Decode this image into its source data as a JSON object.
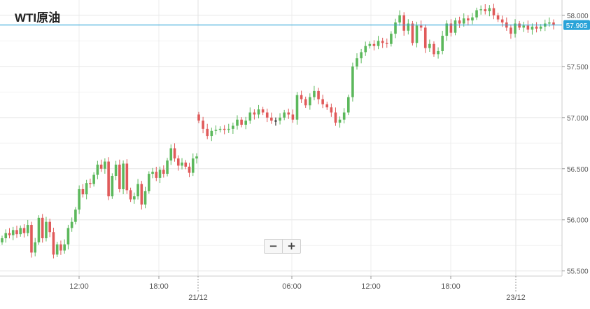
{
  "chart_data": {
    "type": "candlestick",
    "title": "WTI原油",
    "instrument": "WTI原油",
    "interval_minutes": 15,
    "y_ticks": [
      "55.500",
      "56.000",
      "56.500",
      "57.000",
      "57.500",
      "58.000"
    ],
    "ylim": [
      55.45,
      58.15
    ],
    "x_time_ticks": [
      "12:00",
      "18:00",
      "06:00",
      "12:00",
      "18:00"
    ],
    "x_date_ticks": [
      "21/12",
      "23/12"
    ],
    "current_price": "57.905",
    "grid": true,
    "colors": {
      "up": "#5cb85c",
      "down": "#e05a5a",
      "doji": "#111111",
      "price_line": "#2aa3d8",
      "price_label_bg": "#2aa3d8"
    },
    "segments": [
      {
        "start": "2019-12-20 09:00",
        "path": [
          55.82,
          55.87,
          55.85,
          55.9,
          55.86,
          55.92,
          55.87,
          55.95,
          55.68,
          55.78,
          56.02,
          55.82,
          55.98,
          55.88,
          55.66,
          55.76,
          55.7,
          55.76,
          55.92,
          55.98,
          56.1,
          56.3,
          56.25,
          56.36,
          56.35,
          56.44,
          56.54,
          56.5,
          56.57,
          56.23,
          56.43,
          56.54,
          56.3,
          56.55,
          56.29,
          56.2,
          56.23,
          56.35,
          56.15,
          56.28,
          56.45,
          56.47,
          56.41,
          56.49,
          56.45,
          56.58,
          56.7,
          56.6,
          56.53,
          56.56,
          56.52,
          56.46,
          56.6,
          56.62
        ]
      },
      {
        "start": "2019-12-20 22:30",
        "path": [
          56.97,
          56.89,
          56.82,
          56.87,
          56.88,
          56.89,
          56.88,
          56.89,
          56.92,
          56.98,
          56.93,
          56.97,
          57.05,
          57.03,
          57.08,
          57.05,
          57.0,
          56.97,
          56.97,
          57.0,
          57.05,
          57.03,
          56.98,
          57.22,
          57.18,
          57.12,
          57.2,
          57.26,
          57.18,
          57.13,
          57.1,
          57.05,
          56.95,
          56.98,
          57.05,
          57.2,
          57.5,
          57.58,
          57.64,
          57.7,
          57.72,
          57.7,
          57.75,
          57.73,
          57.72,
          57.82,
          57.93,
          58.0,
          57.85,
          57.92,
          57.73,
          57.9,
          57.88,
          57.68,
          57.72,
          57.62,
          57.65,
          57.8,
          57.92,
          57.83,
          57.95,
          57.92,
          57.97,
          57.95,
          57.98,
          58.05,
          58.06,
          58.04,
          58.07,
          58.0,
          57.96,
          57.93,
          57.88,
          57.82,
          57.92,
          57.88,
          57.9,
          57.86,
          57.89,
          57.87,
          57.89,
          57.92,
          57.93,
          57.91
        ]
      }
    ]
  }
}
